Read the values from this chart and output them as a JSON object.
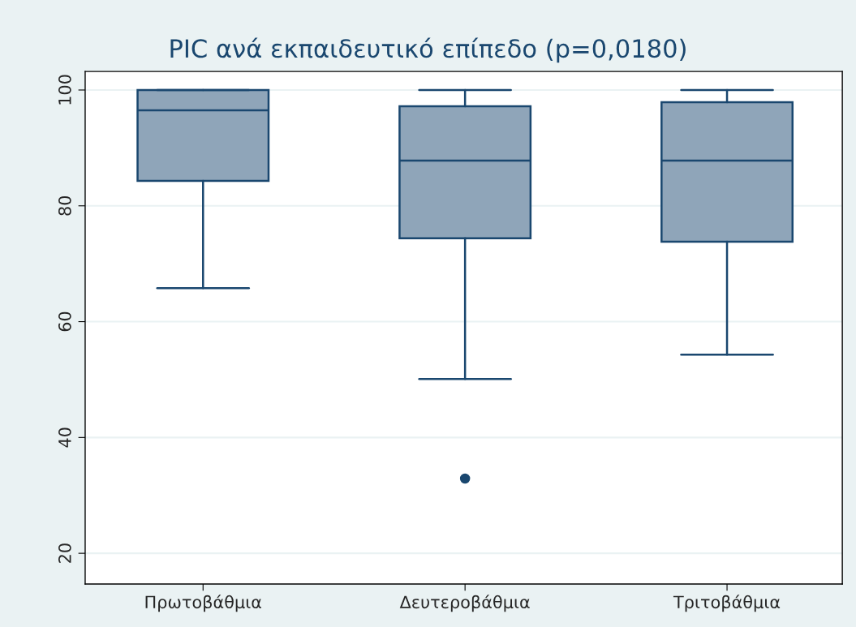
{
  "chart_data": {
    "type": "box",
    "title": "PIC ανά εκπαιδευτικό επίπεδο (p=0,0180)",
    "categories": [
      "Πρωτοβάθμια",
      "Δευτεροβάθμια",
      "Τριτοβάθμια"
    ],
    "boxes": [
      {
        "low": 65.8,
        "q1": 84.3,
        "median": 96.5,
        "q3": 100,
        "high": 100
      },
      {
        "low": 50.1,
        "q1": 74.4,
        "median": 87.8,
        "q3": 97.2,
        "high": 100,
        "outliers": [
          32.9
        ]
      },
      {
        "low": 54.3,
        "q1": 73.8,
        "median": 87.8,
        "q3": 97.9,
        "high": 100
      }
    ],
    "color": "#8fa5b9",
    "ylim": [
      14.7,
      103.2
    ],
    "yticks": [
      20,
      40,
      60,
      80,
      100
    ],
    "grid": "y",
    "legend": false
  }
}
